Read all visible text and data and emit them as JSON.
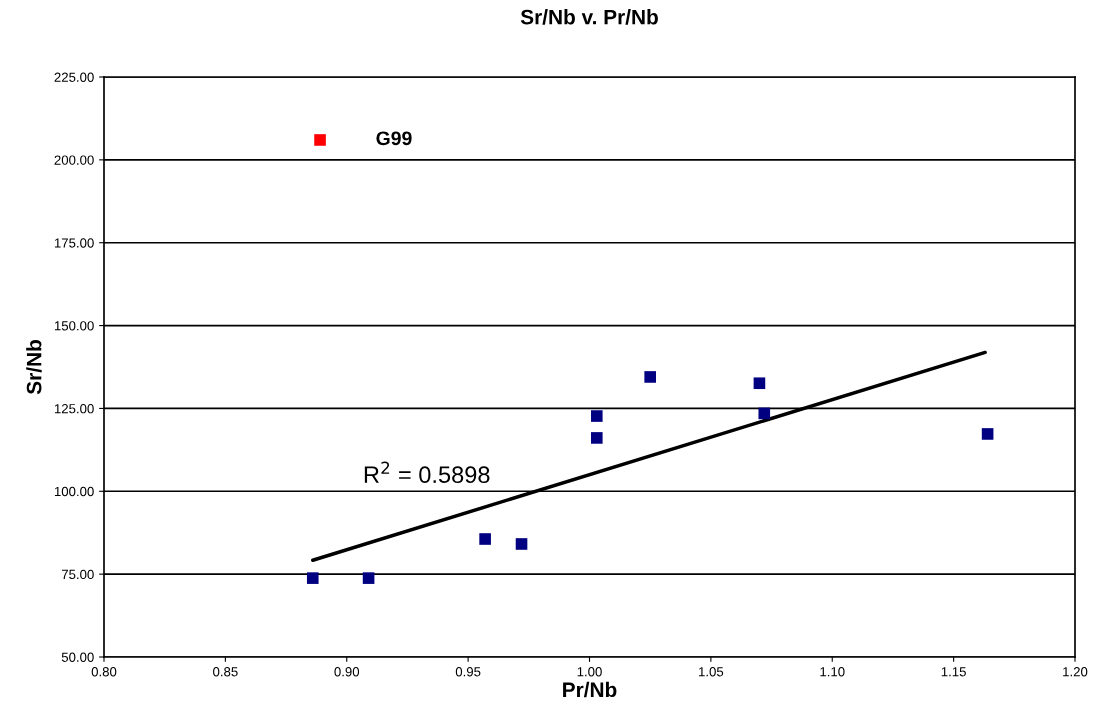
{
  "chart_data": {
    "type": "scatter",
    "title": "Sr/Nb v. Pr/Nb",
    "xlabel": "Pr/Nb",
    "ylabel": "Sr/Nb",
    "xlim": [
      0.8,
      1.2
    ],
    "xticks": [
      {
        "value": 0.8,
        "label": "0.80"
      },
      {
        "value": 0.85,
        "label": "0.85"
      },
      {
        "value": 0.9,
        "label": "0.90"
      },
      {
        "value": 0.95,
        "label": "0.95"
      },
      {
        "value": 1.0,
        "label": "1.00"
      },
      {
        "value": 1.05,
        "label": "1.05"
      },
      {
        "value": 1.1,
        "label": "1.10"
      },
      {
        "value": 1.15,
        "label": "1.15"
      },
      {
        "value": 1.2,
        "label": "1.20"
      }
    ],
    "ylim": [
      50,
      225
    ],
    "yticks": [
      {
        "value": 50,
        "label": "50.00"
      },
      {
        "value": 75,
        "label": "75.00"
      },
      {
        "value": 100,
        "label": "100.00"
      },
      {
        "value": 125,
        "label": "125.00"
      },
      {
        "value": 150,
        "label": "150.00"
      },
      {
        "value": 175,
        "label": "175.00"
      },
      {
        "value": 200,
        "label": "200.00"
      },
      {
        "value": 225,
        "label": "225.00"
      }
    ],
    "grid": "y",
    "marker": "square",
    "legend": false,
    "series": [
      {
        "color": "#000080",
        "x": [
          0.886,
          0.909,
          0.957,
          0.972,
          1.003,
          1.003,
          1.025,
          1.07,
          1.072,
          1.164
        ],
        "values": [
          73.8,
          73.8,
          85.6,
          84.1,
          122.7,
          116.1,
          134.5,
          132.6,
          123.5,
          117.3
        ]
      },
      {
        "color": "#ff0000",
        "x": [
          0.889
        ],
        "values": [
          206
        ]
      },
      {
        "type": "line",
        "color": "#000000",
        "marker": "none",
        "x": [
          0.886,
          1.163
        ],
        "values": [
          79.2,
          141.9
        ]
      }
    ],
    "annotations": [
      {
        "text": "G99",
        "x": 0.889,
        "y": 206
      },
      "R$^{2}$ = 0.5898"
    ]
  }
}
